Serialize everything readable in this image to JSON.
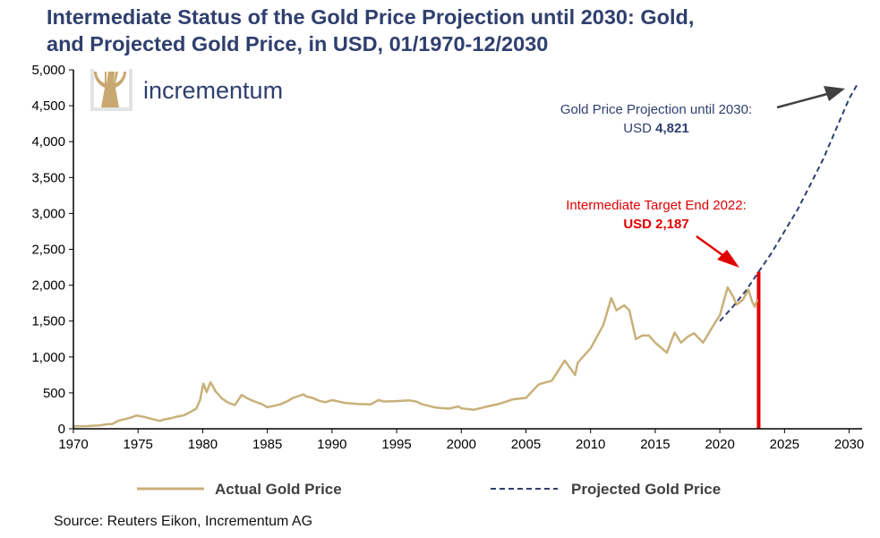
{
  "chart_data": {
    "type": "line",
    "title_line1": "Intermediate Status of the Gold Price Projection until 2030: Gold,",
    "title_line2": "and Projected Gold Price, in USD, 01/1970-12/2030",
    "xlim": [
      1970,
      2031
    ],
    "ylim": [
      0,
      5000
    ],
    "x_ticks": [
      "1970",
      "1975",
      "1980",
      "1985",
      "1990",
      "1995",
      "2000",
      "2005",
      "2010",
      "2015",
      "2020",
      "2025",
      "2030"
    ],
    "y_ticks": [
      "0",
      "500",
      "1,000",
      "1,500",
      "2,000",
      "2,500",
      "3,000",
      "3,500",
      "4,000",
      "4,500",
      "5,000"
    ],
    "series": [
      {
        "name": "Actual Gold Price",
        "color": "#c9b07a",
        "style": "solid",
        "points": [
          [
            1970.0,
            35
          ],
          [
            1971.0,
            38
          ],
          [
            1972.0,
            48
          ],
          [
            1972.7,
            65
          ],
          [
            1973.0,
            66
          ],
          [
            1973.5,
            115
          ],
          [
            1974.0,
            135
          ],
          [
            1974.5,
            160
          ],
          [
            1974.9,
            186
          ],
          [
            1975.5,
            165
          ],
          [
            1976.0,
            140
          ],
          [
            1976.7,
            110
          ],
          [
            1977.0,
            130
          ],
          [
            1977.5,
            145
          ],
          [
            1978.0,
            170
          ],
          [
            1978.5,
            185
          ],
          [
            1979.0,
            230
          ],
          [
            1979.5,
            280
          ],
          [
            1979.8,
            400
          ],
          [
            1980.05,
            630
          ],
          [
            1980.3,
            510
          ],
          [
            1980.6,
            650
          ],
          [
            1981.0,
            520
          ],
          [
            1981.5,
            420
          ],
          [
            1982.0,
            360
          ],
          [
            1982.5,
            330
          ],
          [
            1983.0,
            470
          ],
          [
            1983.5,
            420
          ],
          [
            1984.0,
            380
          ],
          [
            1984.5,
            350
          ],
          [
            1985.0,
            300
          ],
          [
            1985.5,
            320
          ],
          [
            1986.0,
            340
          ],
          [
            1986.5,
            380
          ],
          [
            1987.0,
            430
          ],
          [
            1987.8,
            480
          ],
          [
            1988.0,
            450
          ],
          [
            1988.5,
            430
          ],
          [
            1989.0,
            390
          ],
          [
            1989.5,
            370
          ],
          [
            1990.0,
            400
          ],
          [
            1991.0,
            360
          ],
          [
            1992.0,
            345
          ],
          [
            1993.0,
            340
          ],
          [
            1993.6,
            400
          ],
          [
            1994.0,
            380
          ],
          [
            1995.0,
            385
          ],
          [
            1996.0,
            395
          ],
          [
            1996.5,
            380
          ],
          [
            1997.0,
            340
          ],
          [
            1998.0,
            295
          ],
          [
            1999.0,
            280
          ],
          [
            1999.8,
            310
          ],
          [
            2000.0,
            285
          ],
          [
            2001.0,
            265
          ],
          [
            2002.0,
            310
          ],
          [
            2003.0,
            350
          ],
          [
            2004.0,
            410
          ],
          [
            2005.0,
            430
          ],
          [
            2006.0,
            620
          ],
          [
            2007.0,
            670
          ],
          [
            2008.0,
            950
          ],
          [
            2008.8,
            750
          ],
          [
            2009.0,
            920
          ],
          [
            2010.0,
            1120
          ],
          [
            2011.0,
            1450
          ],
          [
            2011.6,
            1820
          ],
          [
            2012.0,
            1650
          ],
          [
            2012.6,
            1720
          ],
          [
            2013.0,
            1650
          ],
          [
            2013.5,
            1250
          ],
          [
            2014.0,
            1300
          ],
          [
            2014.5,
            1300
          ],
          [
            2015.0,
            1200
          ],
          [
            2015.9,
            1060
          ],
          [
            2016.5,
            1340
          ],
          [
            2017.0,
            1200
          ],
          [
            2017.5,
            1280
          ],
          [
            2018.0,
            1330
          ],
          [
            2018.7,
            1200
          ],
          [
            2019.0,
            1290
          ],
          [
            2019.7,
            1500
          ],
          [
            2020.0,
            1580
          ],
          [
            2020.6,
            1970
          ],
          [
            2021.0,
            1850
          ],
          [
            2021.3,
            1730
          ],
          [
            2021.8,
            1800
          ],
          [
            2022.2,
            1940
          ],
          [
            2022.5,
            1770
          ],
          [
            2022.7,
            1700
          ],
          [
            2022.9,
            1800
          ]
        ]
      },
      {
        "name": "Projected Gold Price",
        "color": "#2f3f6e",
        "style": "dashed",
        "points": [
          [
            2020.0,
            1500
          ],
          [
            2021.0,
            1700
          ],
          [
            2022.0,
            1920
          ],
          [
            2023.0,
            2187
          ],
          [
            2024.0,
            2450
          ],
          [
            2025.0,
            2750
          ],
          [
            2026.0,
            3050
          ],
          [
            2027.0,
            3400
          ],
          [
            2028.0,
            3760
          ],
          [
            2029.0,
            4180
          ],
          [
            2030.0,
            4600
          ],
          [
            2030.7,
            4821
          ]
        ]
      }
    ],
    "target_bar": {
      "x": 2023.0,
      "value": 2187,
      "color": "#e00000"
    },
    "annotations": {
      "projection_line1": "Gold Price Projection until 2030:",
      "projection_prefix": "USD ",
      "projection_value": "4,821",
      "target_line1": "Intermediate Target End 2022:",
      "target_line2": "USD 2,187"
    },
    "legend_placement": "bottom"
  },
  "logo_text": "incrementum",
  "source": "Source: Reuters Eikon, Incrementum AG"
}
